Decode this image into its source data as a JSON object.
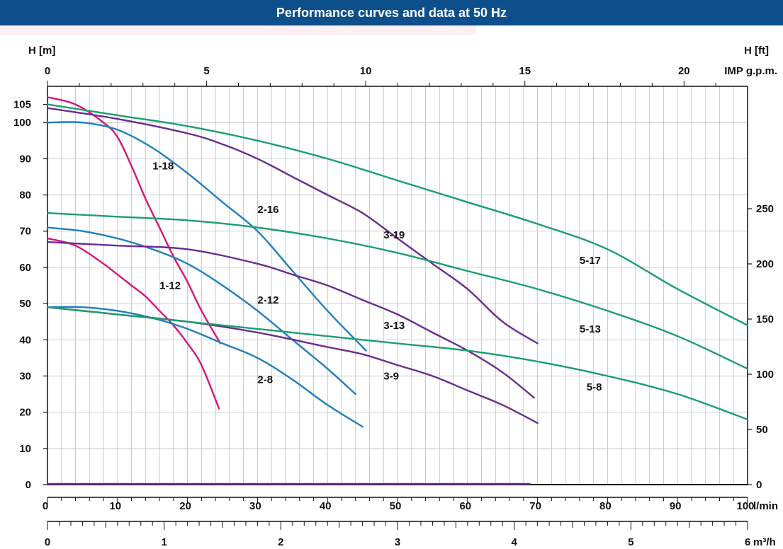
{
  "header": {
    "title": "Performance curves and data at 50 Hz"
  },
  "colors": {
    "banner": "#0d4f8b",
    "grid": "#bfbfbf",
    "axis": "#111111"
  },
  "chart_data": {
    "type": "line",
    "title": "Performance curves and data at 50 Hz",
    "left_axis": {
      "label": "H [m]",
      "range": [
        0,
        110
      ],
      "ticks": [
        "0",
        "10",
        "20",
        "30",
        "40",
        "50",
        "60",
        "70",
        "80",
        "90",
        "100",
        "105"
      ],
      "tick_values": [
        0,
        10,
        20,
        30,
        40,
        50,
        60,
        70,
        80,
        90,
        100,
        105
      ]
    },
    "right_axis": {
      "label": "H [ft]",
      "ticks": [
        "0",
        "50",
        "100",
        "150",
        "200",
        "250"
      ],
      "tick_values": [
        0,
        50,
        100,
        150,
        200,
        250
      ],
      "ft_per_m": 3.2808
    },
    "top_axis": {
      "label": "IMP g.p.m.",
      "ticks": [
        "0",
        "5",
        "10",
        "15",
        "20"
      ],
      "tick_values": [
        0,
        5,
        10,
        15,
        20
      ],
      "lmin_per_unit": 4.546
    },
    "bottom_axis": {
      "label": "l/min",
      "range": [
        0,
        100
      ],
      "ticks": [
        "0",
        "10",
        "20",
        "30",
        "40",
        "50",
        "60",
        "70",
        "80",
        "90",
        "100"
      ],
      "tick_values": [
        0,
        10,
        20,
        30,
        40,
        50,
        60,
        70,
        80,
        90,
        100
      ]
    },
    "m3h_axis": {
      "label": "m³/h",
      "ticks": [
        "0",
        "1",
        "2",
        "3",
        "4",
        "5",
        "6"
      ],
      "tick_values": [
        0,
        1,
        2,
        3,
        4,
        5,
        6
      ],
      "lmin_per_unit": 16.667
    },
    "series": [
      {
        "name": "1-18",
        "color": "#d6137e",
        "label_at": [
          15,
          87
        ],
        "x": [
          0,
          4,
          8,
          10,
          12,
          14,
          16,
          18,
          20,
          22,
          24.7
        ],
        "y": [
          107,
          105,
          100,
          96,
          88,
          79,
          71,
          63,
          56,
          48,
          39
        ]
      },
      {
        "name": "1-12",
        "color": "#d6137e",
        "label_at": [
          16,
          54
        ],
        "x": [
          0,
          4,
          8,
          10,
          12,
          14,
          16,
          18,
          20,
          22,
          24.5
        ],
        "y": [
          68,
          66,
          61,
          58,
          55,
          52,
          48,
          44,
          39,
          33,
          21
        ]
      },
      {
        "name": "2-16",
        "color": "#1f7fbf",
        "label_at": [
          30,
          75
        ],
        "x": [
          0,
          5,
          10,
          15,
          20,
          25,
          30,
          35,
          40,
          45.5
        ],
        "y": [
          100,
          100,
          98,
          93,
          86,
          78,
          70,
          59,
          48,
          37
        ]
      },
      {
        "name": "2-12",
        "color": "#1f7fbf",
        "label_at": [
          30,
          50
        ],
        "x": [
          0,
          5,
          10,
          15,
          20,
          25,
          30,
          35,
          40,
          44
        ],
        "y": [
          71,
          70,
          68,
          65,
          61,
          55,
          48,
          40,
          32,
          25
        ]
      },
      {
        "name": "2-8",
        "color": "#1f7fbf",
        "label_at": [
          30,
          28
        ],
        "x": [
          0,
          5,
          10,
          15,
          20,
          25,
          30,
          35,
          40,
          45
        ],
        "y": [
          49,
          49,
          48,
          46,
          43,
          39,
          35,
          29,
          22,
          16
        ]
      },
      {
        "name": "3-19",
        "color": "#6a2c91",
        "label_at": [
          48,
          68
        ],
        "x": [
          0,
          10,
          20,
          25,
          30,
          35,
          40,
          45,
          50,
          55,
          60,
          65,
          70
        ],
        "y": [
          104,
          101,
          97,
          94,
          90,
          85,
          80,
          75,
          68,
          61,
          54,
          45,
          39
        ]
      },
      {
        "name": "3-13",
        "color": "#6a2c91",
        "label_at": [
          48,
          43
        ],
        "x": [
          0,
          10,
          20,
          30,
          35,
          40,
          45,
          50,
          55,
          60,
          65,
          69.5
        ],
        "y": [
          67,
          66,
          65,
          61,
          58,
          55,
          51,
          47,
          42,
          37,
          31,
          24
        ]
      },
      {
        "name": "3-9",
        "color": "#6a2c91",
        "label_at": [
          48,
          29
        ],
        "x": [
          0,
          10,
          20,
          30,
          40,
          45,
          50,
          55,
          60,
          65,
          70
        ],
        "y": [
          49,
          47,
          45,
          42,
          38,
          36,
          33,
          30,
          26,
          22,
          17
        ]
      },
      {
        "name": "5-17",
        "color": "#1b9e6e",
        "label_at": [
          76,
          61
        ],
        "x": [
          0,
          10,
          20,
          30,
          40,
          50,
          60,
          70,
          80,
          90,
          100
        ],
        "y": [
          105,
          102,
          99,
          95,
          90,
          84,
          78,
          72,
          65,
          54,
          44
        ]
      },
      {
        "name": "5-13",
        "color": "#1b9e6e",
        "label_at": [
          76,
          42
        ],
        "x": [
          0,
          10,
          20,
          30,
          40,
          50,
          60,
          70,
          80,
          90,
          100
        ],
        "y": [
          75,
          74,
          73,
          71,
          68,
          64,
          59,
          54,
          48,
          41,
          32
        ]
      },
      {
        "name": "5-8",
        "color": "#1b9e6e",
        "label_at": [
          77,
          26
        ],
        "x": [
          0,
          10,
          20,
          30,
          40,
          50,
          60,
          70,
          80,
          90,
          100
        ],
        "y": [
          49,
          47,
          45,
          43,
          41,
          39,
          37,
          34,
          30,
          25,
          18
        ]
      }
    ]
  }
}
